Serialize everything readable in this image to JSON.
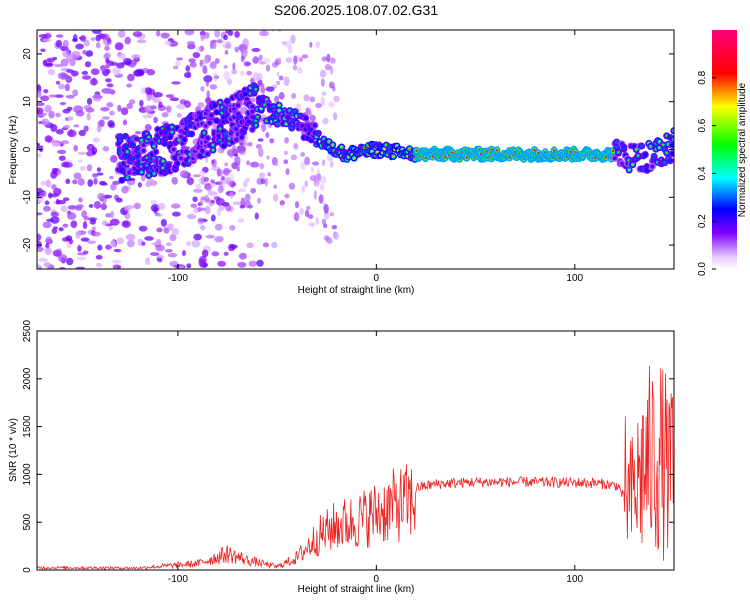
{
  "title": "S206.2025.108.07.02.G31",
  "chart_data": [
    {
      "type": "heatmap",
      "xlabel": "Height of straight line (km)",
      "ylabel": "Frequency (Hz)",
      "xlim": [
        -171,
        150
      ],
      "ylim": [
        -25,
        25
      ],
      "xticks": [
        -100,
        0,
        100
      ],
      "yticks": [
        -20,
        -10,
        0,
        10,
        20
      ],
      "colorbar": {
        "label": "Normalized spectral amplitude",
        "range": [
          0,
          1
        ],
        "ticks": [
          "0.0",
          "0.2",
          "0.4",
          "0.6",
          "0.8"
        ],
        "colors": [
          "#ffffff",
          "#8000ff",
          "#0000ff",
          "#00ffff",
          "#00ff00",
          "#ffff00",
          "#ff0000",
          "#ff00a0"
        ]
      },
      "ridge": [
        {
          "x": -120,
          "y": -2
        },
        {
          "x": -105,
          "y": 0
        },
        {
          "x": -90,
          "y": 3
        },
        {
          "x": -75,
          "y": 6
        },
        {
          "x": -60,
          "y": 9
        },
        {
          "x": -45,
          "y": 7
        },
        {
          "x": -35,
          "y": 4
        },
        {
          "x": -25,
          "y": 1
        },
        {
          "x": -15,
          "y": -1
        },
        {
          "x": 0,
          "y": 0
        },
        {
          "x": 20,
          "y": -1
        },
        {
          "x": 120,
          "y": -1
        },
        {
          "x": 135,
          "y": -2
        },
        {
          "x": 150,
          "y": 1
        }
      ]
    },
    {
      "type": "line",
      "xlabel": "Height of straight line (km)",
      "ylabel": "SNR (10 * v/v)",
      "xlim": [
        -171,
        150
      ],
      "ylim": [
        0,
        2500
      ],
      "xticks": [
        -100,
        0,
        100
      ],
      "yticks": [
        0,
        500,
        1000,
        1500,
        2000,
        2500
      ],
      "color": "#ee2222",
      "envelope": [
        {
          "x": -171,
          "y": 30
        },
        {
          "x": -120,
          "y": 25
        },
        {
          "x": -90,
          "y": 80
        },
        {
          "x": -75,
          "y": 200
        },
        {
          "x": -65,
          "y": 120
        },
        {
          "x": -50,
          "y": 40
        },
        {
          "x": -40,
          "y": 150
        },
        {
          "x": -30,
          "y": 400
        },
        {
          "x": -20,
          "y": 550
        },
        {
          "x": -10,
          "y": 600
        },
        {
          "x": 0,
          "y": 700
        },
        {
          "x": 10,
          "y": 800
        },
        {
          "x": 20,
          "y": 860
        },
        {
          "x": 30,
          "y": 900
        },
        {
          "x": 50,
          "y": 920
        },
        {
          "x": 80,
          "y": 920
        },
        {
          "x": 110,
          "y": 910
        },
        {
          "x": 122,
          "y": 880
        },
        {
          "x": 128,
          "y": 600
        },
        {
          "x": 135,
          "y": 900
        },
        {
          "x": 142,
          "y": 1000
        },
        {
          "x": 150,
          "y": 800
        }
      ]
    }
  ]
}
